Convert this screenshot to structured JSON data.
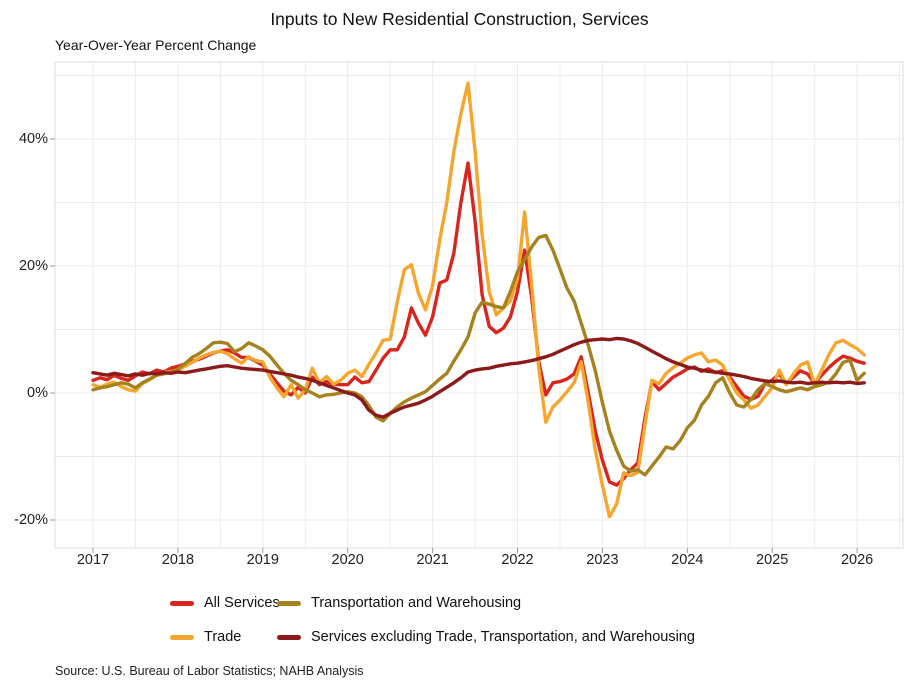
{
  "title": "Inputs to New Residential Construction, Services",
  "subtitle": "Year-Over-Year Percent Change",
  "source": "Source: U.S. Bureau of Labor Statistics; NAHB Analysis",
  "legend": {
    "items": [
      {
        "label": "All Services",
        "series": 0
      },
      {
        "label": "Transportation and Warehousing",
        "series": 2
      },
      {
        "label": "Trade",
        "series": 1
      },
      {
        "label": "Services excluding Trade, Transportation, and Warehousing",
        "series": 3
      }
    ]
  },
  "chart_data": {
    "type": "line",
    "title": "Inputs to New Residential Construction, Services",
    "ylabel": "Year-Over-Year Percent Change",
    "x_unit": "month",
    "x_start": "2017-01",
    "x_end": "2026-02",
    "x_ticks": [
      2017,
      2018,
      2019,
      2020,
      2021,
      2022,
      2023,
      2024,
      2025,
      2026
    ],
    "y_ticks": [
      {
        "label": "40%",
        "value": 40
      },
      {
        "label": "20%",
        "value": 20
      },
      {
        "label": "0%",
        "value": 0
      },
      {
        "label": "-20%",
        "value": -20
      }
    ],
    "ylim": [
      -24,
      52
    ],
    "grid": {
      "y_values": [
        50,
        40,
        30,
        20,
        10,
        0,
        -10,
        -20
      ],
      "x_interval_years": 0.5
    },
    "legend_position": "bottom",
    "series": [
      {
        "id": "all-services",
        "name": "All Services",
        "color": "#D9251D",
        "values": [
          2.0,
          2.4,
          2.1,
          2.8,
          2.3,
          2.0,
          2.7,
          3.3,
          3.0,
          3.6,
          3.3,
          3.9,
          4.2,
          4.6,
          5.0,
          5.3,
          5.8,
          6.3,
          6.6,
          6.8,
          6.3,
          5.6,
          5.6,
          5.0,
          4.4,
          3.0,
          1.6,
          0.3,
          -0.3,
          0.9,
          0.0,
          2.5,
          1.3,
          1.8,
          1.4,
          1.3,
          1.3,
          2.5,
          1.6,
          1.8,
          3.6,
          5.5,
          6.8,
          6.8,
          8.8,
          13.4,
          11.0,
          9.1,
          12.0,
          17.3,
          17.8,
          22.0,
          30.0,
          36.2,
          27.0,
          15.5,
          10.5,
          9.5,
          10.2,
          12.0,
          16.0,
          22.5,
          15.0,
          5.0,
          -0.3,
          1.6,
          1.8,
          2.2,
          3.0,
          5.7,
          0.0,
          -6.0,
          -10.6,
          -14.0,
          -14.5,
          -13.5,
          -12.1,
          -11.0,
          -4.0,
          1.8,
          0.5,
          1.5,
          2.5,
          3.1,
          3.8,
          4.1,
          3.4,
          3.8,
          3.2,
          3.5,
          2.5,
          1.0,
          -0.5,
          -1.0,
          -0.5,
          1.5,
          2.0,
          3.0,
          1.5,
          2.5,
          3.5,
          3.0,
          1.5,
          2.8,
          4.0,
          5.0,
          5.8,
          5.5,
          5.0,
          4.7
        ]
      },
      {
        "id": "trade",
        "name": "Trade",
        "color": "#F5A62E",
        "values": [
          1.3,
          0.9,
          1.4,
          1.7,
          1.0,
          0.5,
          0.3,
          1.5,
          2.1,
          2.8,
          3.2,
          3.4,
          3.6,
          4.2,
          4.8,
          5.5,
          6.0,
          6.4,
          6.6,
          6.2,
          5.4,
          4.7,
          5.7,
          5.1,
          4.9,
          2.5,
          0.8,
          -0.6,
          1.3,
          -0.8,
          0.5,
          3.9,
          1.6,
          2.6,
          1.4,
          2.0,
          3.1,
          3.6,
          2.6,
          4.5,
          6.3,
          8.3,
          8.5,
          14.3,
          19.4,
          20.2,
          15.7,
          13.1,
          17.0,
          24.1,
          30.0,
          38.0,
          44.0,
          48.8,
          38.0,
          25.0,
          16.0,
          12.3,
          13.4,
          14.5,
          18.0,
          28.5,
          17.0,
          4.0,
          -4.6,
          -2.2,
          -1.1,
          0.2,
          1.6,
          4.9,
          -1.5,
          -9.0,
          -14.5,
          -19.5,
          -17.5,
          -12.6,
          -13.0,
          -12.5,
          -5.0,
          2.0,
          1.5,
          3.1,
          4.0,
          4.7,
          5.5,
          6.0,
          6.3,
          4.9,
          5.2,
          4.4,
          2.0,
          0.0,
          -1.1,
          -2.4,
          -1.9,
          -0.5,
          0.8,
          3.6,
          1.3,
          3.0,
          4.4,
          4.9,
          1.3,
          3.6,
          6.0,
          7.9,
          8.3,
          7.6,
          7.0,
          6.0
        ]
      },
      {
        "id": "transportation-warehousing",
        "name": "Transportation and Warehousing",
        "color": "#A6821F",
        "values": [
          0.5,
          0.8,
          1.0,
          1.3,
          1.6,
          1.4,
          0.8,
          1.6,
          2.2,
          2.8,
          3.0,
          3.3,
          3.8,
          4.6,
          5.6,
          6.2,
          7.0,
          7.9,
          8.0,
          7.8,
          6.5,
          7.0,
          7.9,
          7.4,
          6.8,
          5.8,
          4.4,
          3.1,
          2.0,
          1.3,
          0.5,
          0.0,
          -0.6,
          -0.3,
          -0.2,
          0.0,
          0.2,
          0.0,
          -0.6,
          -2.0,
          -3.8,
          -4.4,
          -3.2,
          -2.2,
          -1.4,
          -0.8,
          -0.3,
          0.2,
          1.2,
          2.2,
          3.1,
          5.0,
          6.8,
          8.8,
          12.6,
          14.3,
          14.0,
          13.6,
          13.4,
          16.0,
          19.1,
          21.0,
          23.0,
          24.5,
          24.8,
          22.5,
          19.5,
          16.5,
          14.5,
          11.0,
          7.5,
          3.5,
          -1.5,
          -6.0,
          -9.0,
          -11.5,
          -12.3,
          -12.1,
          -12.9,
          -11.5,
          -10.1,
          -8.5,
          -8.8,
          -7.5,
          -5.5,
          -4.3,
          -1.9,
          -0.5,
          1.6,
          2.4,
          0.0,
          -1.9,
          -2.2,
          -1.0,
          0.5,
          1.5,
          1.0,
          0.5,
          0.2,
          0.5,
          0.8,
          0.5,
          1.0,
          1.3,
          1.7,
          3.0,
          4.8,
          5.2,
          2.0,
          3.1
        ]
      },
      {
        "id": "services-excluding",
        "name": "Services excluding Trade, Transportation, and Warehousing",
        "color": "#8C1A1A",
        "values": [
          3.2,
          3.0,
          2.8,
          3.1,
          2.9,
          2.7,
          3.0,
          2.8,
          3.1,
          3.0,
          3.2,
          3.1,
          3.3,
          3.2,
          3.4,
          3.6,
          3.8,
          4.0,
          4.2,
          4.3,
          4.1,
          3.9,
          3.8,
          3.7,
          3.6,
          3.4,
          3.2,
          3.0,
          2.8,
          2.5,
          2.3,
          2.0,
          1.6,
          1.2,
          0.8,
          0.4,
          0.0,
          -0.3,
          -1.1,
          -2.7,
          -3.5,
          -3.8,
          -3.2,
          -2.7,
          -2.2,
          -1.9,
          -1.6,
          -1.1,
          -0.5,
          0.2,
          0.9,
          1.6,
          2.4,
          3.3,
          3.6,
          3.8,
          3.9,
          4.2,
          4.4,
          4.6,
          4.7,
          4.9,
          5.1,
          5.4,
          5.7,
          6.1,
          6.6,
          7.1,
          7.6,
          8.0,
          8.3,
          8.4,
          8.5,
          8.4,
          8.6,
          8.5,
          8.2,
          7.8,
          7.2,
          6.6,
          6.0,
          5.4,
          4.9,
          4.5,
          4.1,
          3.9,
          3.6,
          3.4,
          3.3,
          3.1,
          3.0,
          2.8,
          2.6,
          2.3,
          2.1,
          1.9,
          1.8,
          1.9,
          1.7,
          1.6,
          1.7,
          1.5,
          1.6,
          1.7,
          1.6,
          1.7,
          1.6,
          1.7,
          1.5,
          1.6
        ]
      }
    ]
  }
}
